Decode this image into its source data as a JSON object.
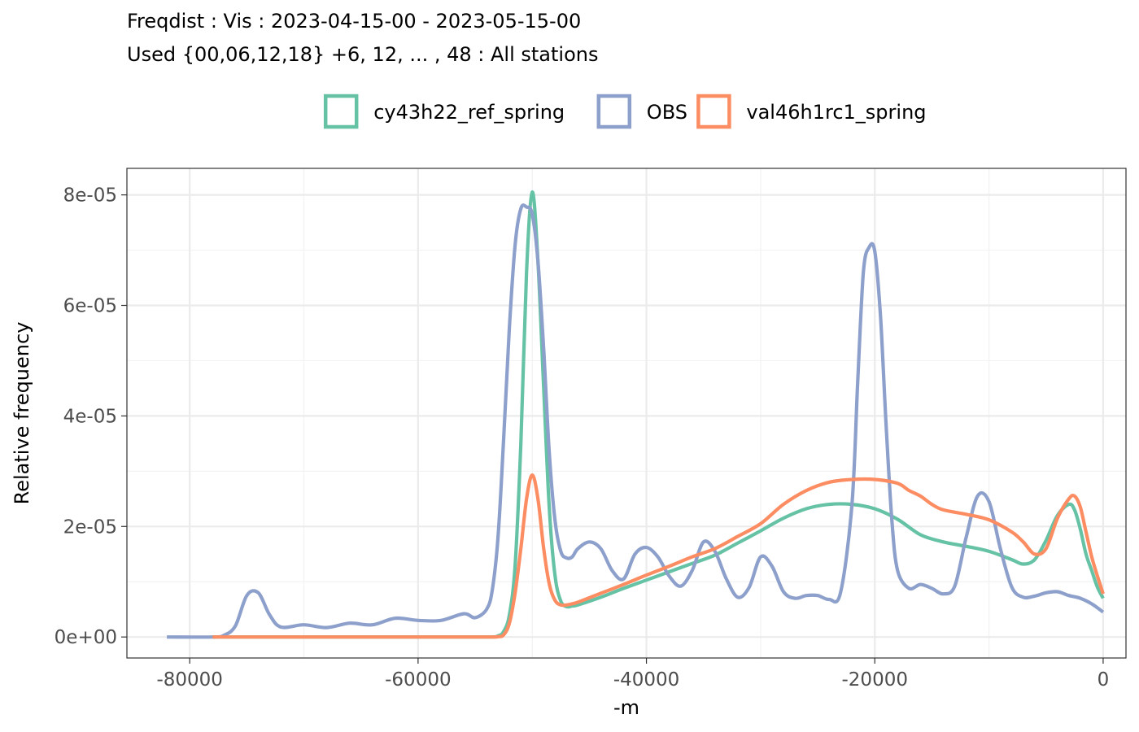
{
  "chart_data": {
    "type": "line",
    "title": "Freqdist : Vis : 2023-04-15-00 - 2023-05-15-00",
    "subtitle": "Used {00,06,12,18} +6, 12, ... , 48 : All stations",
    "xlabel": "-m",
    "ylabel": "Relative frequency",
    "xlim": [
      -85500,
      2000
    ],
    "ylim": [
      -3.8e-06,
      8.48e-05
    ],
    "x_ticks": [
      -80000,
      -60000,
      -40000,
      -20000,
      0
    ],
    "x_tick_labels": [
      "-80000",
      "-60000",
      "-40000",
      "-20000",
      "0"
    ],
    "y_ticks": [
      0,
      2e-05,
      4e-05,
      6e-05,
      8e-05
    ],
    "y_tick_labels": [
      "0e+00",
      "2e-05",
      "4e-05",
      "6e-05",
      "8e-05"
    ],
    "grid": true,
    "legend_position": "top",
    "series": [
      {
        "name": "cy43h22_ref_spring",
        "color": "#66C2A5",
        "x": [
          -78000,
          -70000,
          -60000,
          -54000,
          -53000,
          -52500,
          -52000,
          -51500,
          -51000,
          -50500,
          -50000,
          -49500,
          -49000,
          -48500,
          -48000,
          -47500,
          -47000,
          -46500,
          -46000,
          -44000,
          -42000,
          -40000,
          -38000,
          -36000,
          -34000,
          -32000,
          -30000,
          -28000,
          -26000,
          -24000,
          -22000,
          -20000,
          -18000,
          -16000,
          -14000,
          -12000,
          -10000,
          -8000,
          -7000,
          -6000,
          -5000,
          -4000,
          -3000,
          -2500,
          -2000,
          -1500,
          -1000,
          -500,
          0
        ],
        "y": [
          0,
          0,
          0,
          0,
          2e-07,
          1e-06,
          4e-06,
          1.3e-05,
          3.5e-05,
          6.6e-05,
          8.05e-05,
          6.8e-05,
          4.5e-05,
          2.3e-05,
          1.1e-05,
          6.5e-06,
          5.5e-06,
          5.6e-06,
          5.8e-06,
          7.2e-06,
          8.8e-06,
          1.03e-05,
          1.18e-05,
          1.33e-05,
          1.48e-05,
          1.7e-05,
          1.92e-05,
          2.15e-05,
          2.32e-05,
          2.4e-05,
          2.4e-05,
          2.32e-05,
          2.13e-05,
          1.85e-05,
          1.72e-05,
          1.64e-05,
          1.55e-05,
          1.4e-05,
          1.32e-05,
          1.4e-05,
          1.75e-05,
          2.2e-05,
          2.4e-05,
          2.3e-05,
          1.95e-05,
          1.5e-05,
          1.2e-05,
          9e-06,
          7e-06
        ]
      },
      {
        "name": "OBS",
        "color": "#8DA0CB",
        "x": [
          -82000,
          -78000,
          -77000,
          -76000,
          -75000,
          -74000,
          -73000,
          -72000,
          -70000,
          -68000,
          -66000,
          -64000,
          -62000,
          -60000,
          -58000,
          -56000,
          -55000,
          -54000,
          -53500,
          -53000,
          -52500,
          -52000,
          -51500,
          -51000,
          -50500,
          -50000,
          -49500,
          -49000,
          -48500,
          -48000,
          -47500,
          -47000,
          -46500,
          -46000,
          -45000,
          -44000,
          -43000,
          -42000,
          -41000,
          -40000,
          -39000,
          -38000,
          -37000,
          -36000,
          -35000,
          -34000,
          -33000,
          -32000,
          -31000,
          -30000,
          -29000,
          -28000,
          -27000,
          -26000,
          -25000,
          -24000,
          -23000,
          -22000,
          -21500,
          -21000,
          -20500,
          -20000,
          -19500,
          -19000,
          -18500,
          -18000,
          -17000,
          -16000,
          -15000,
          -14000,
          -13000,
          -12000,
          -11000,
          -10000,
          -9000,
          -8000,
          -7000,
          -6000,
          -5000,
          -4000,
          -3000,
          -2000,
          -1000,
          0
        ],
        "y": [
          0,
          0,
          3e-07,
          2e-06,
          7.5e-06,
          8e-06,
          4e-06,
          1.8e-06,
          2.2e-06,
          1.7e-06,
          2.5e-06,
          2.2e-06,
          3.4e-06,
          3e-06,
          3e-06,
          4.2e-06,
          3.5e-06,
          5e-06,
          8.5e-06,
          1.8e-05,
          3.6e-05,
          5.6e-05,
          7.1e-05,
          7.75e-05,
          7.78e-05,
          7.65e-05,
          6.8e-05,
          5.2e-05,
          3.3e-05,
          2.1e-05,
          1.55e-05,
          1.43e-05,
          1.45e-05,
          1.6e-05,
          1.72e-05,
          1.6e-05,
          1.2e-05,
          1.05e-05,
          1.5e-05,
          1.62e-05,
          1.45e-05,
          1.1e-05,
          9.2e-06,
          1.2e-05,
          1.72e-05,
          1.55e-05,
          1.05e-05,
          7.2e-06,
          9e-06,
          1.45e-05,
          1.28e-05,
          8.2e-06,
          7e-06,
          7.5e-06,
          7.5e-06,
          6.8e-06,
          8e-06,
          2.4e-05,
          4.6e-05,
          6.6e-05,
          7.05e-05,
          6.98e-05,
          5.8e-05,
          3.8e-05,
          2.1e-05,
          1.2e-05,
          8.8e-06,
          9.5e-06,
          8.8e-06,
          7.8e-06,
          9.2e-06,
          1.8e-05,
          2.55e-05,
          2.45e-05,
          1.6e-05,
          9e-06,
          7.2e-06,
          7.4e-06,
          8e-06,
          8.2e-06,
          7.5e-06,
          7e-06,
          6e-06,
          4.5e-06
        ]
      },
      {
        "name": "val46h1rc1_spring",
        "color": "#FC8D62",
        "x": [
          -78000,
          -70000,
          -60000,
          -54000,
          -53000,
          -52500,
          -52000,
          -51500,
          -51000,
          -50500,
          -50000,
          -49500,
          -49000,
          -48500,
          -48000,
          -47500,
          -47000,
          -46500,
          -46000,
          -44000,
          -42000,
          -40000,
          -38000,
          -36000,
          -34000,
          -32000,
          -30000,
          -28000,
          -26000,
          -24000,
          -22000,
          -20000,
          -18000,
          -17000,
          -16000,
          -15000,
          -14000,
          -12000,
          -10000,
          -8000,
          -7000,
          -6000,
          -5000,
          -4000,
          -3000,
          -2500,
          -2000,
          -1500,
          -1000,
          -500,
          0
        ],
        "y": [
          0,
          0,
          0,
          0,
          5e-08,
          4e-07,
          2.5e-06,
          8e-06,
          1.6e-05,
          2.5e-05,
          2.93e-05,
          2.5e-05,
          1.6e-05,
          9.5e-06,
          6.6e-06,
          5.8e-06,
          5.8e-06,
          6e-06,
          6.3e-06,
          7.9e-06,
          9.5e-06,
          1.12e-05,
          1.28e-05,
          1.45e-05,
          1.6e-05,
          1.82e-05,
          2.05e-05,
          2.4e-05,
          2.65e-05,
          2.8e-05,
          2.85e-05,
          2.85e-05,
          2.78e-05,
          2.65e-05,
          2.55e-05,
          2.4e-05,
          2.3e-05,
          2.22e-05,
          2.12e-05,
          1.9e-05,
          1.72e-05,
          1.5e-05,
          1.6e-05,
          2.15e-05,
          2.5e-05,
          2.55e-05,
          2.35e-05,
          1.9e-05,
          1.45e-05,
          1.1e-05,
          7.8e-06
        ]
      }
    ]
  }
}
